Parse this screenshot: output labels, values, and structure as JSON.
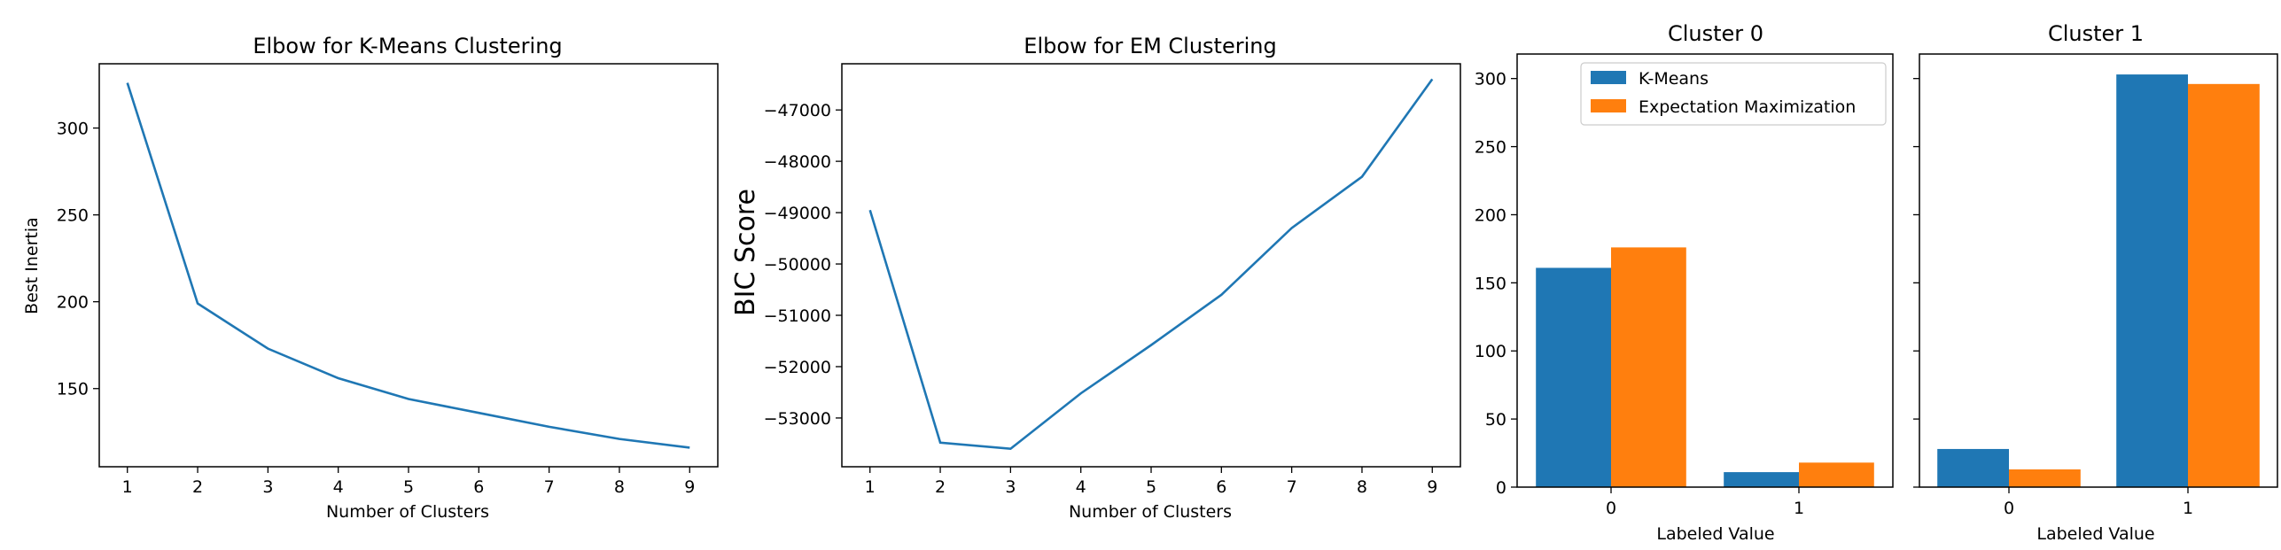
{
  "colors": {
    "blue": "#1f77b4",
    "orange": "#ff7f0e"
  },
  "chart_data": [
    {
      "type": "line",
      "title": "Elbow for K-Means Clustering",
      "xlabel": "Number of Clusters",
      "ylabel": "Best Inertia",
      "x": [
        1,
        2,
        3,
        4,
        5,
        6,
        7,
        8,
        9
      ],
      "y": [
        326,
        199,
        173,
        156,
        144,
        136,
        128,
        121,
        116
      ],
      "xlim": [
        0.6,
        9.4
      ],
      "ylim": [
        105,
        337
      ],
      "xticks": [
        1,
        2,
        3,
        4,
        5,
        6,
        7,
        8,
        9
      ],
      "yticks": [
        150,
        200,
        250,
        300
      ],
      "series_name": "Best Inertia",
      "color": "#1f77b4"
    },
    {
      "type": "line",
      "title": "Elbow for EM Clustering",
      "xlabel": "Number of Clusters",
      "ylabel": "BIC Score",
      "x": [
        1,
        2,
        3,
        4,
        5,
        6,
        7,
        8,
        9
      ],
      "y": [
        -48950,
        -53480,
        -53600,
        -52520,
        -51580,
        -50600,
        -49300,
        -48300,
        -46400
      ],
      "xlim": [
        0.6,
        9.4
      ],
      "ylim": [
        -53950,
        -46100
      ],
      "xticks": [
        1,
        2,
        3,
        4,
        5,
        6,
        7,
        8,
        9
      ],
      "yticks": [
        -53000,
        -52000,
        -51000,
        -50000,
        -49000,
        -48000,
        -47000
      ],
      "series_name": "BIC Score",
      "color": "#1f77b4"
    },
    {
      "type": "bar",
      "title": "Cluster 0",
      "xlabel": "Labeled Value",
      "ylabel": "",
      "categories": [
        "0",
        "1"
      ],
      "series": [
        {
          "name": "K-Means",
          "values": [
            161,
            11
          ],
          "color": "#1f77b4"
        },
        {
          "name": "Expectation Maximization",
          "values": [
            176,
            18
          ],
          "color": "#ff7f0e"
        }
      ],
      "ylim": [
        0,
        318
      ],
      "yticks": [
        0,
        50,
        100,
        150,
        200,
        250,
        300
      ],
      "legend": "top-center"
    },
    {
      "type": "bar",
      "title": "Cluster 1",
      "xlabel": "Labeled Value",
      "ylabel": "",
      "categories": [
        "0",
        "1"
      ],
      "series": [
        {
          "name": "K-Means",
          "values": [
            28,
            303
          ],
          "color": "#1f77b4"
        },
        {
          "name": "Expectation Maximization",
          "values": [
            13,
            296
          ],
          "color": "#ff7f0e"
        }
      ],
      "ylim": [
        0,
        318
      ],
      "yticks": [
        0,
        50,
        100,
        150,
        200,
        250,
        300
      ],
      "shared_y": true
    }
  ]
}
